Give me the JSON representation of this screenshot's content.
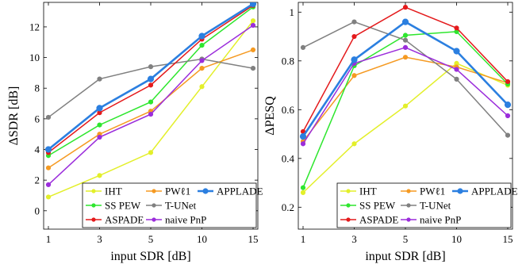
{
  "chart_data": [
    {
      "type": "line",
      "xlabel": "input SDR [dB]",
      "ylabel": "ΔSDR [dB]",
      "categories": [
        "1",
        "3",
        "5",
        "10",
        "15"
      ],
      "ylim": [
        -1.2,
        13.6
      ],
      "yticks": [
        0,
        2,
        4,
        6,
        8,
        10,
        12
      ],
      "grid": false,
      "legend_position": "bottom-right",
      "series": [
        {
          "name": "IHT",
          "color": "#e3ef2a",
          "values": [
            0.9,
            2.3,
            3.8,
            8.1,
            12.4
          ]
        },
        {
          "name": "PWℓ1",
          "color": "#f59a22",
          "values": [
            2.8,
            5.0,
            6.5,
            9.3,
            10.5
          ]
        },
        {
          "name": "APPLADE",
          "color": "#2b7fe0",
          "values": [
            4.0,
            6.7,
            8.6,
            11.4,
            13.5
          ]
        },
        {
          "name": "SS PEW",
          "color": "#2ee62e",
          "values": [
            3.6,
            5.6,
            7.1,
            10.8,
            13.3
          ]
        },
        {
          "name": "T-UNet",
          "color": "#808080",
          "values": [
            6.1,
            8.6,
            9.4,
            9.9,
            9.3
          ]
        },
        {
          "name": "ASPADE",
          "color": "#e41a1c",
          "values": [
            3.8,
            6.4,
            8.2,
            11.2,
            13.4
          ]
        },
        {
          "name": "naive PnP",
          "color": "#9b2ddb",
          "values": [
            1.7,
            4.8,
            6.3,
            9.8,
            12.1
          ]
        }
      ]
    },
    {
      "type": "line",
      "xlabel": "input SDR [dB]",
      "ylabel": "ΔPESQ",
      "categories": [
        "1",
        "3",
        "5",
        "10",
        "15"
      ],
      "ylim": [
        0.11,
        1.04
      ],
      "yticks": [
        0.2,
        0.4,
        0.6,
        0.8,
        1
      ],
      "grid": false,
      "legend_position": "bottom-right",
      "series": [
        {
          "name": "IHT",
          "color": "#e3ef2a",
          "values": [
            0.26,
            0.46,
            0.615,
            0.79,
            0.7
          ]
        },
        {
          "name": "PWℓ1",
          "color": "#f59a22",
          "values": [
            0.47,
            0.74,
            0.815,
            0.775,
            0.71
          ]
        },
        {
          "name": "APPLADE",
          "color": "#2b7fe0",
          "values": [
            0.49,
            0.805,
            0.96,
            0.84,
            0.62
          ]
        },
        {
          "name": "SS PEW",
          "color": "#2ee62e",
          "values": [
            0.28,
            0.78,
            0.905,
            0.92,
            0.705
          ]
        },
        {
          "name": "T-UNet",
          "color": "#808080",
          "values": [
            0.855,
            0.96,
            0.885,
            0.725,
            0.495
          ]
        },
        {
          "name": "ASPADE",
          "color": "#e41a1c",
          "values": [
            0.51,
            0.9,
            1.02,
            0.935,
            0.715
          ]
        },
        {
          "name": "naive PnP",
          "color": "#9b2ddb",
          "values": [
            0.46,
            0.79,
            0.855,
            0.765,
            0.575
          ]
        }
      ]
    }
  ]
}
